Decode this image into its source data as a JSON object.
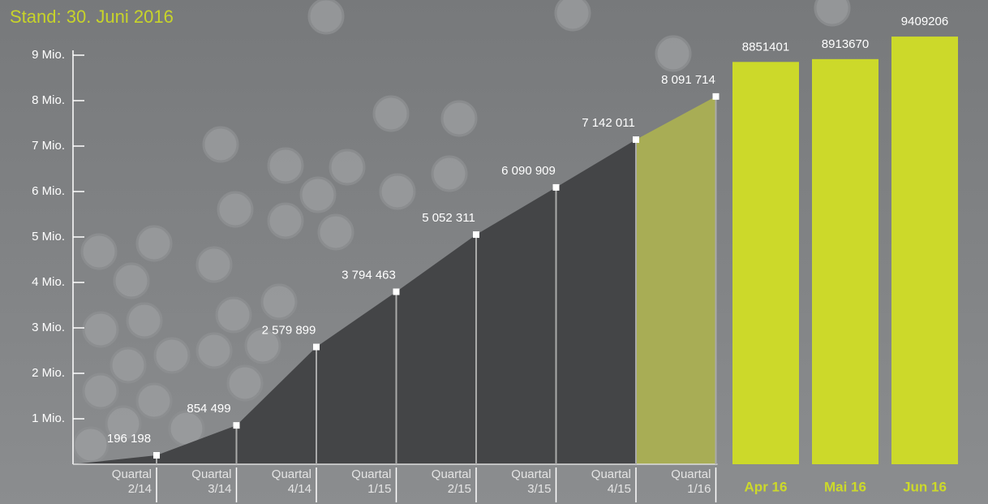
{
  "chart_data": [
    {
      "type": "area",
      "title": "Stand: 30. Juni 2016",
      "categories": [
        "Quartal 2/14",
        "Quartal 3/14",
        "Quartal 4/14",
        "Quartal 1/15",
        "Quartal 2/15",
        "Quartal 3/15",
        "Quartal 4/15",
        "Quartal 1/16"
      ],
      "values": [
        196198,
        854499,
        2579899,
        3794463,
        5052311,
        6090909,
        7142011,
        8091714
      ],
      "value_labels": [
        "196 198",
        "854 499",
        "2 579 899",
        "3 794 463",
        "5 052 311",
        "6 090 909",
        "7 142 011",
        "8 091 714"
      ],
      "color": "#444547",
      "highlight_color": "#a8ad55",
      "ylim": [
        0,
        9000000
      ],
      "yticks": [
        {
          "value": 1000000,
          "label": "1 Mio."
        },
        {
          "value": 2000000,
          "label": "2 Mio."
        },
        {
          "value": 3000000,
          "label": "3 Mio."
        },
        {
          "value": 4000000,
          "label": "4 Mio."
        },
        {
          "value": 5000000,
          "label": "5 Mio."
        },
        {
          "value": 6000000,
          "label": "6 Mio."
        },
        {
          "value": 7000000,
          "label": "7 Mio."
        },
        {
          "value": 8000000,
          "label": "8 Mio."
        },
        {
          "value": 9000000,
          "label": "9 Mio."
        }
      ]
    },
    {
      "type": "bar",
      "categories": [
        "Apr 16",
        "Mai 16",
        "Jun 16"
      ],
      "values": [
        8851401,
        8913670,
        9409206
      ],
      "color": "#ccd92a"
    }
  ]
}
